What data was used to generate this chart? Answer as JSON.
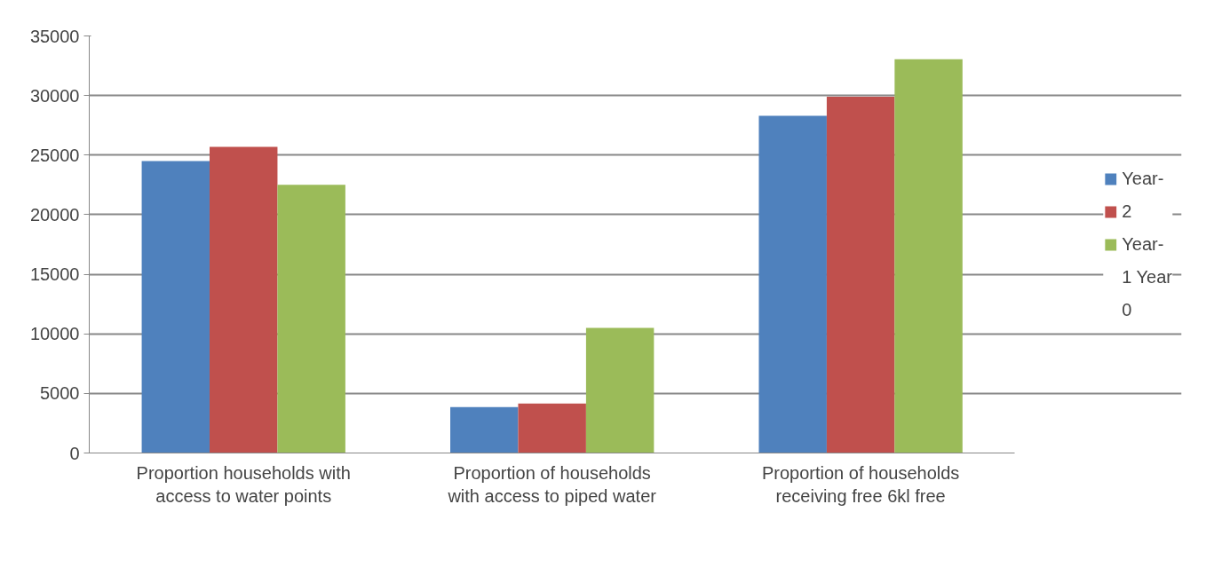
{
  "chart_data": {
    "type": "bar",
    "categories": [
      "Proportion households with access to water points",
      "Proportion of households with access to piped water",
      "Proportion of households receiving free 6kl free"
    ],
    "series": [
      {
        "name": "Year-",
        "color": "#4f81bd",
        "values": [
          24500,
          3850,
          28300
        ]
      },
      {
        "name": "2",
        "color": "#c0504d",
        "values": [
          25700,
          4150,
          29900
        ]
      },
      {
        "name": "Year-",
        "color": "#9bbb59",
        "values": [
          22500,
          10500,
          33050
        ]
      }
    ],
    "annotations": [
      "1 Year",
      "0"
    ],
    "ylim": [
      0,
      35000
    ],
    "yticks": [
      0,
      5000,
      10000,
      15000,
      20000,
      25000,
      30000,
      35000
    ],
    "grid": "y",
    "legend": "right"
  }
}
